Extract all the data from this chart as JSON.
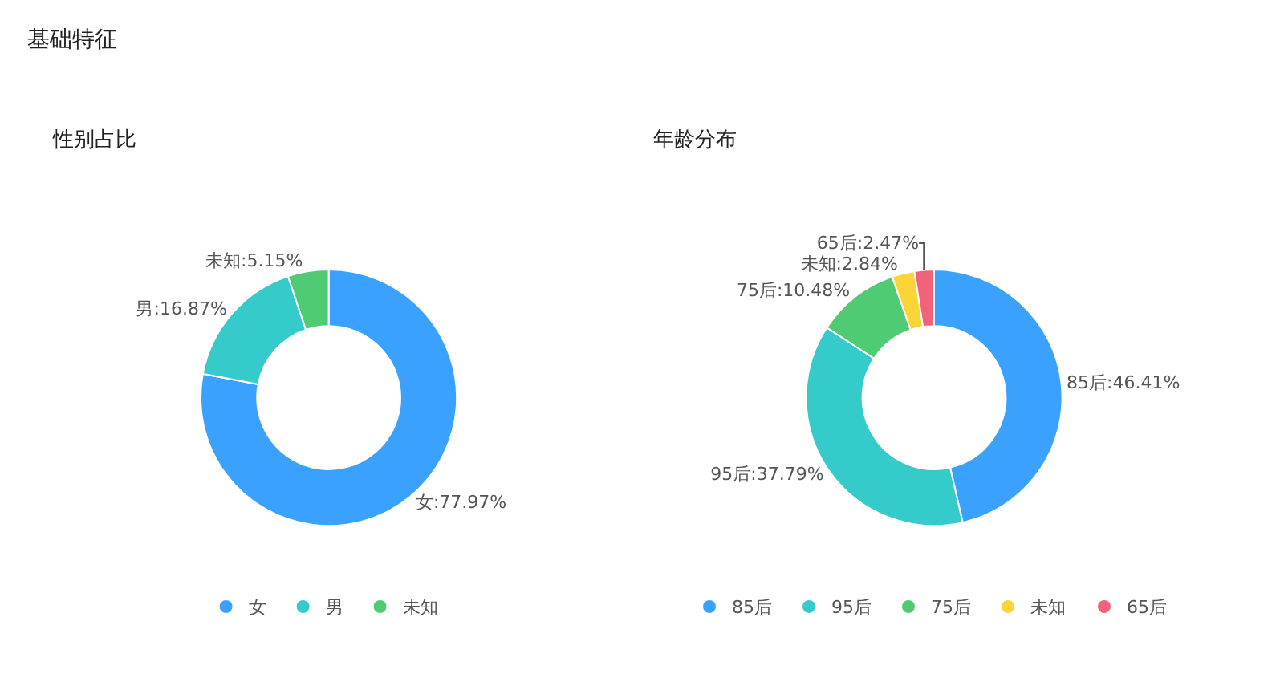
{
  "chart_data": [
    {
      "type": "donut",
      "title": "性别占比",
      "annotations": [
        "基础特征"
      ],
      "categories": [
        "女",
        "男",
        "未知"
      ],
      "values": [
        77.97,
        16.87,
        5.15
      ],
      "colors": [
        "#3ba1ff",
        "#36cbcb",
        "#4ecb73"
      ],
      "value_labels": [
        "女:77.97%",
        "男:16.87%",
        "未知:5.15%"
      ],
      "legend": "bottom",
      "marker": "circle"
    },
    {
      "type": "donut",
      "title": "年龄分布",
      "categories": [
        "85后",
        "95后",
        "75后",
        "未知",
        "65后"
      ],
      "values": [
        46.41,
        37.79,
        10.48,
        2.84,
        2.47
      ],
      "colors": [
        "#3ba1ff",
        "#36cbcb",
        "#4ecb73",
        "#fbd437",
        "#f2637b"
      ],
      "value_labels": [
        "85后:46.41%",
        "95后:37.79%",
        "75后:10.48%",
        "未知:2.84%",
        "65后:2.47%"
      ],
      "legend": "bottom",
      "marker": "circle"
    }
  ]
}
